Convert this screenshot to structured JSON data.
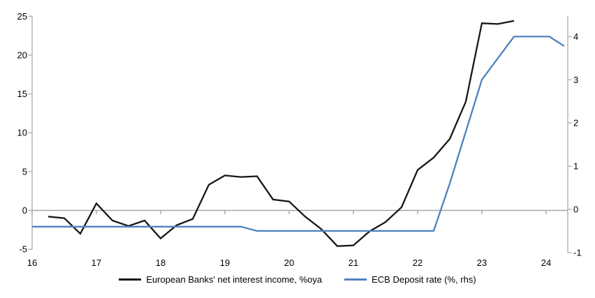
{
  "chart_data": {
    "type": "line",
    "title": "",
    "xlabel": "",
    "ylabel_left": "",
    "ylabel_right": "",
    "grid": "zero-line-only",
    "legend_position": "bottom-center",
    "x_axis": {
      "ticks": [
        16,
        17,
        18,
        19,
        20,
        21,
        22,
        23,
        24
      ],
      "range": [
        16,
        24.35
      ]
    },
    "left_axis": {
      "ticks": [
        25,
        20,
        15,
        10,
        5,
        0,
        -5
      ],
      "range": [
        -5,
        25
      ]
    },
    "right_axis": {
      "ticks": [
        4,
        3,
        2,
        1,
        0,
        -1
      ],
      "range": [
        -1,
        4.5
      ]
    },
    "series": [
      {
        "name": "European Banks' net interest income, %oya",
        "axis": "left",
        "color": "#161616",
        "points": [
          [
            16.25,
            -0.8
          ],
          [
            16.5,
            -1.0
          ],
          [
            16.75,
            -3.0
          ],
          [
            17.0,
            0.9
          ],
          [
            17.25,
            -1.3
          ],
          [
            17.5,
            -2.0
          ],
          [
            17.75,
            -1.3
          ],
          [
            18.0,
            -3.6
          ],
          [
            18.25,
            -1.9
          ],
          [
            18.5,
            -1.1
          ],
          [
            18.75,
            3.3
          ],
          [
            19.0,
            4.5
          ],
          [
            19.25,
            4.3
          ],
          [
            19.5,
            4.4
          ],
          [
            19.75,
            1.4
          ],
          [
            20.0,
            1.15
          ],
          [
            20.25,
            -0.8
          ],
          [
            20.5,
            -2.4
          ],
          [
            20.75,
            -4.6
          ],
          [
            21.0,
            -4.5
          ],
          [
            21.25,
            -2.7
          ],
          [
            21.5,
            -1.5
          ],
          [
            21.75,
            0.4
          ],
          [
            22.0,
            5.2
          ],
          [
            22.25,
            6.8
          ],
          [
            22.5,
            9.2
          ],
          [
            22.75,
            14.0
          ],
          [
            23.0,
            24.1
          ],
          [
            23.25,
            24.0
          ],
          [
            23.5,
            24.4
          ]
        ]
      },
      {
        "name": "ECB Deposit rate (%, rhs)",
        "axis": "right",
        "color": "#4f81bd",
        "points": [
          [
            16.0,
            -0.4
          ],
          [
            19.25,
            -0.4
          ],
          [
            19.5,
            -0.5
          ],
          [
            22.25,
            -0.5
          ],
          [
            22.5,
            0.6
          ],
          [
            22.75,
            1.8
          ],
          [
            23.0,
            3.0
          ],
          [
            23.25,
            3.5
          ],
          [
            23.5,
            4.0
          ],
          [
            24.05,
            4.0
          ],
          [
            24.28,
            3.78
          ]
        ]
      }
    ],
    "colors": {
      "axis_line": "#b0b0b0",
      "zero_line": "#a6a6a6",
      "text": "#000000",
      "background": "#ffffff"
    }
  }
}
